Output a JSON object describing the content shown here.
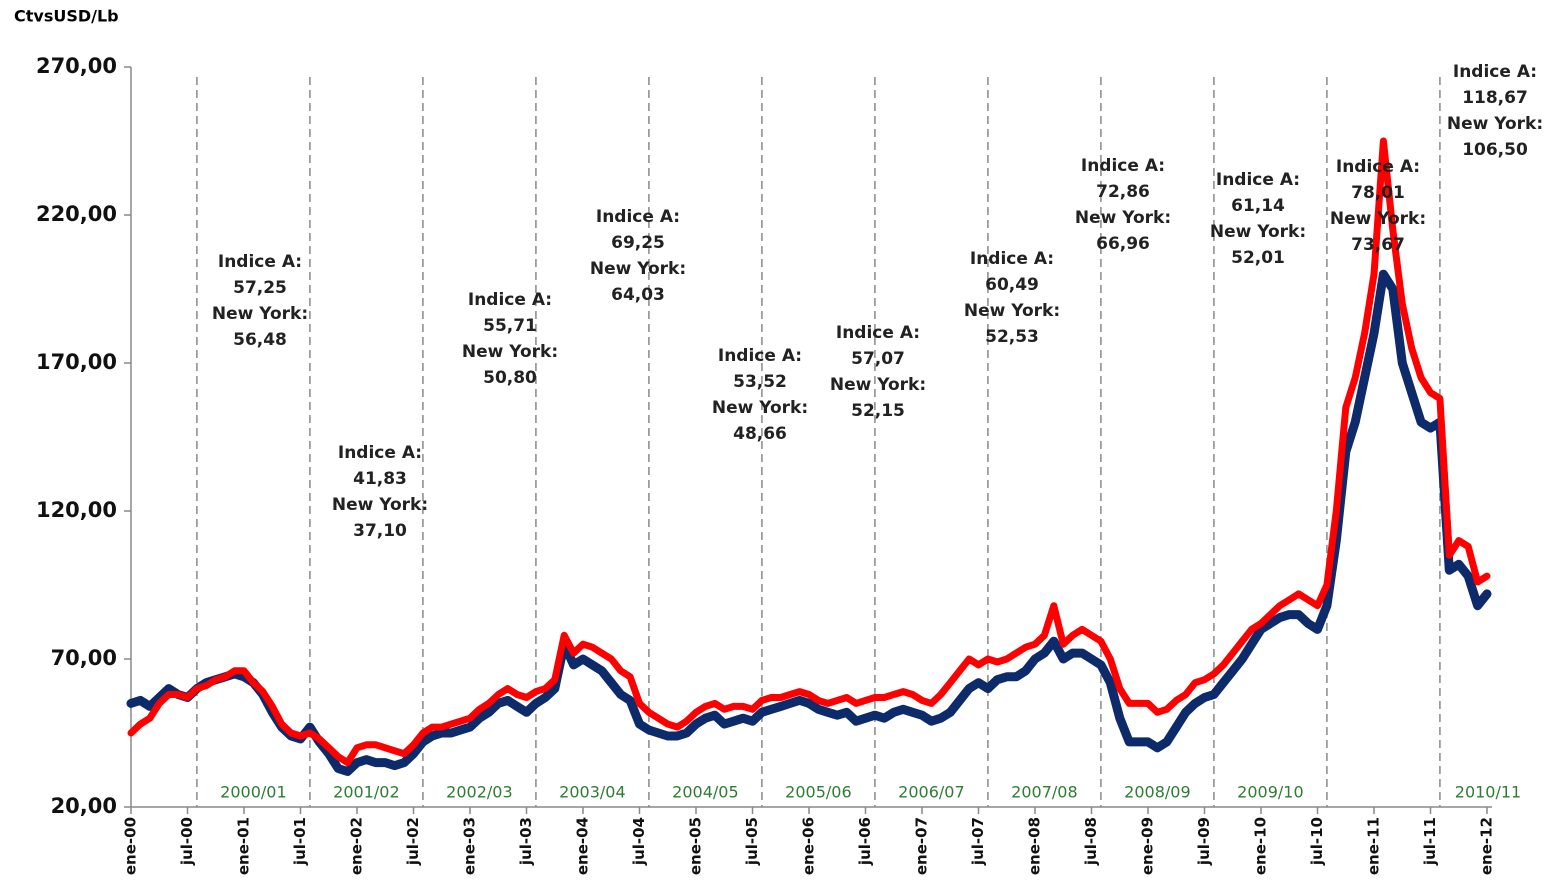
{
  "chart_data": {
    "type": "line",
    "y_label": "CtvsUSD/Lb",
    "ylim": [
      20,
      270
    ],
    "yticks": [
      {
        "value": 20,
        "label": "20,00"
      },
      {
        "value": 70,
        "label": "70,00"
      },
      {
        "value": 120,
        "label": "120,00"
      },
      {
        "value": 170,
        "label": "170,00"
      },
      {
        "value": 220,
        "label": "220,00"
      },
      {
        "value": 270,
        "label": "270,00"
      }
    ],
    "categories": [
      "ene-00",
      null,
      null,
      null,
      null,
      null,
      "jul-00",
      null,
      null,
      null,
      null,
      null,
      "ene-01",
      null,
      null,
      null,
      null,
      null,
      "jul-01",
      null,
      null,
      null,
      null,
      null,
      "ene-02",
      null,
      null,
      null,
      null,
      null,
      "jul-02",
      null,
      null,
      null,
      null,
      null,
      "ene-03",
      null,
      null,
      null,
      null,
      null,
      "jul-03",
      null,
      null,
      null,
      null,
      null,
      "ene-04",
      null,
      null,
      null,
      null,
      null,
      "jul-04",
      null,
      null,
      null,
      null,
      null,
      "ene-05",
      null,
      null,
      null,
      null,
      null,
      "jul-05",
      null,
      null,
      null,
      null,
      null,
      "ene-06",
      null,
      null,
      null,
      null,
      null,
      "jul-06",
      null,
      null,
      null,
      null,
      null,
      "ene-07",
      null,
      null,
      null,
      null,
      null,
      "jul-07",
      null,
      null,
      null,
      null,
      null,
      "ene-08",
      null,
      null,
      null,
      null,
      null,
      "jul-08",
      null,
      null,
      null,
      null,
      null,
      "ene-09",
      null,
      null,
      null,
      null,
      null,
      "jul-09",
      null,
      null,
      null,
      null,
      null,
      "ene-10",
      null,
      null,
      null,
      null,
      null,
      "jul-10",
      null,
      null,
      null,
      null,
      null,
      "ene-11",
      null,
      null,
      null,
      null,
      null,
      "jul-11",
      null,
      null,
      null,
      null,
      null,
      "ene-12"
    ],
    "series": [
      {
        "color": "#0d2a6b",
        "values": [
          55,
          56,
          54,
          57,
          60,
          58,
          57,
          60,
          62,
          63,
          64,
          65,
          64,
          62,
          58,
          52,
          47,
          44,
          43,
          47,
          42,
          38,
          33,
          32,
          35,
          36,
          35,
          35,
          34,
          35,
          38,
          42,
          44,
          45,
          45,
          46,
          47,
          50,
          52,
          55,
          56,
          54,
          52,
          55,
          57,
          60,
          75,
          68,
          70,
          68,
          66,
          62,
          58,
          56,
          48,
          46,
          45,
          44,
          44,
          45,
          48,
          50,
          51,
          48,
          49,
          50,
          49,
          52,
          53,
          54,
          55,
          56,
          55,
          53,
          52,
          51,
          52,
          49,
          50,
          51,
          50,
          52,
          53,
          52,
          51,
          49,
          50,
          52,
          56,
          60,
          62,
          60,
          63,
          64,
          64,
          66,
          70,
          72,
          76,
          70,
          72,
          72,
          70,
          68,
          62,
          50,
          42,
          42,
          42,
          40,
          42,
          47,
          52,
          55,
          57,
          58,
          62,
          66,
          70,
          75,
          80,
          82,
          84,
          85,
          85,
          82,
          80,
          88,
          110,
          140,
          150,
          165,
          180,
          200,
          195,
          170,
          160,
          150,
          148,
          150,
          100,
          102,
          98,
          88,
          92
        ]
      },
      {
        "color": "#ff0000",
        "values": [
          45,
          48,
          50,
          55,
          58,
          58,
          57,
          60,
          61,
          63,
          64,
          66,
          66,
          62,
          59,
          54,
          48,
          45,
          44,
          45,
          43,
          40,
          37,
          35,
          40,
          41,
          41,
          40,
          39,
          38,
          41,
          45,
          47,
          47,
          48,
          49,
          50,
          53,
          55,
          58,
          60,
          58,
          57,
          59,
          60,
          63,
          78,
          72,
          75,
          74,
          72,
          70,
          66,
          64,
          55,
          52,
          50,
          48,
          47,
          49,
          52,
          54,
          55,
          53,
          54,
          54,
          53,
          56,
          57,
          57,
          58,
          59,
          58,
          56,
          55,
          56,
          57,
          55,
          56,
          57,
          57,
          58,
          59,
          58,
          56,
          55,
          58,
          62,
          66,
          70,
          68,
          70,
          69,
          70,
          72,
          74,
          75,
          78,
          88,
          75,
          78,
          80,
          78,
          76,
          70,
          60,
          55,
          55,
          55,
          52,
          53,
          56,
          58,
          62,
          63,
          65,
          68,
          72,
          76,
          80,
          82,
          85,
          88,
          90,
          92,
          90,
          88,
          95,
          120,
          155,
          165,
          180,
          200,
          245,
          215,
          190,
          175,
          165,
          160,
          158,
          105,
          110,
          108,
          96,
          98
        ]
      }
    ],
    "annotations": [
      {
        "season": "2000/01",
        "lines": [
          "Indice A:",
          "57,25",
          "New York:",
          "56,48"
        ]
      },
      {
        "season": "2001/02",
        "lines": [
          "Indice A:",
          "41,83",
          "New York:",
          "37,10"
        ]
      },
      {
        "season": "2002/03",
        "lines": [
          "Indice A:",
          "55,71",
          "New York:",
          "50,80"
        ]
      },
      {
        "season": "2003/04",
        "lines": [
          "Indice A:",
          "69,25",
          "New York:",
          "64,03"
        ]
      },
      {
        "season": "2004/05",
        "lines": [
          "Indice A:",
          "53,52",
          "New York:",
          "48,66"
        ]
      },
      {
        "season": "2005/06",
        "lines": [
          "Indice A:",
          "57,07",
          "New York:",
          "52,15"
        ]
      },
      {
        "season": "2006/07",
        "lines": [
          "Indice A:",
          "60,49",
          "New York:",
          "52,53"
        ]
      },
      {
        "season": "2007/08",
        "lines": [
          "Indice A:",
          "72,86",
          "New York:",
          "66,96"
        ]
      },
      {
        "season": "2008/09",
        "lines": [
          "Indice A:",
          "61,14",
          "New York:",
          "52,01"
        ]
      },
      {
        "season": "2009/10",
        "lines": [
          "Indice A:",
          "78,01",
          "New York:",
          "73,67"
        ]
      },
      {
        "season": "2010/11",
        "lines": [
          "Indice A:",
          "118,67",
          "New York:",
          "106,50"
        ]
      }
    ]
  }
}
